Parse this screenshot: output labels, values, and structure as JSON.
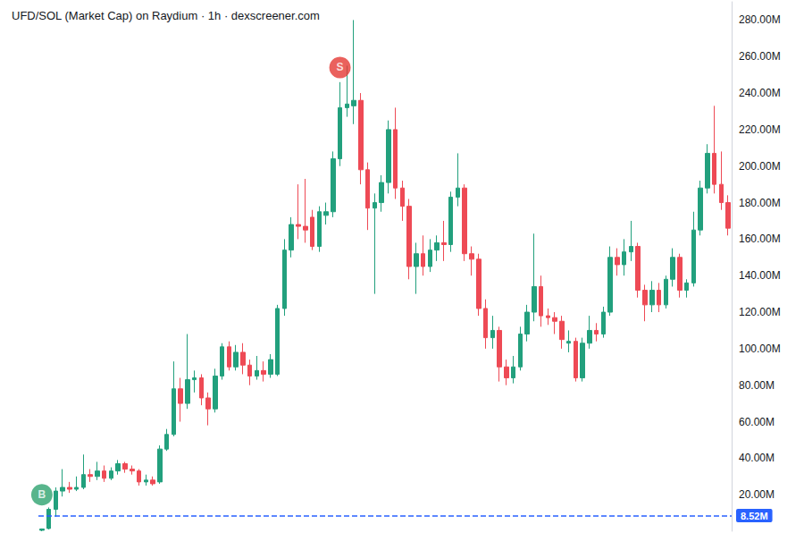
{
  "chart_data": {
    "type": "candlestick",
    "title": "UFD/SOL (Market Cap) on Raydium · 1h · dexscreener.com",
    "categories": [
      null,
      null,
      null,
      null,
      null,
      null,
      null,
      null,
      null,
      null,
      null,
      null,
      null,
      null,
      null,
      null,
      null,
      null,
      null,
      null,
      null,
      null,
      null,
      null,
      null,
      null,
      null,
      null,
      null,
      null,
      null,
      null,
      null,
      null,
      null,
      null,
      null,
      null,
      null,
      null,
      null,
      null,
      null,
      null,
      null,
      null,
      null,
      null,
      null,
      null,
      null,
      null,
      null,
      null,
      null,
      null,
      null,
      null,
      null,
      null,
      null,
      null,
      null,
      null,
      null,
      null,
      null,
      null,
      null,
      null,
      null,
      null,
      null,
      null,
      null,
      null,
      null,
      null,
      null,
      null,
      null,
      null,
      null,
      null,
      null,
      null,
      null,
      null,
      null,
      null,
      null,
      null,
      null,
      null,
      null,
      null,
      null,
      null,
      null,
      null
    ],
    "series": [
      {
        "open": [
          0.5,
          1.5,
          12,
          22,
          24,
          23,
          24,
          31,
          30,
          33,
          29,
          33,
          37,
          34,
          33,
          27,
          28,
          27,
          45,
          53,
          78,
          70,
          83,
          84,
          73,
          67,
          85,
          101,
          90,
          98,
          91,
          85,
          88,
          86,
          86,
          122,
          154,
          168,
          167,
          172,
          156,
          173,
          175,
          204,
          232,
          233,
          236,
          198,
          177,
          180,
          191,
          220,
          188,
          178,
          145,
          152,
          145,
          154,
          158,
          157,
          183,
          188,
          152,
          149,
          122,
          106,
          110,
          90,
          84,
          90,
          108,
          120,
          134,
          118,
          117,
          115,
          103,
          104,
          84,
          103,
          110,
          108,
          120,
          150,
          146,
          153,
          156,
          132,
          124,
          132,
          124,
          138,
          150,
          132,
          136,
          165,
          188,
          207,
          190,
          180
        ],
        "close": [
          1.2,
          12,
          22,
          24,
          23,
          24,
          31,
          30,
          33,
          29,
          33,
          37,
          34,
          33,
          27,
          28,
          26,
          45,
          53,
          78,
          70,
          83,
          84,
          73,
          67,
          85,
          101,
          90,
          98,
          91,
          85,
          88,
          86,
          94,
          122,
          154,
          168,
          167,
          165,
          156,
          175,
          175,
          204,
          232,
          234,
          236,
          198,
          177,
          180,
          191,
          220,
          188,
          178,
          145,
          152,
          145,
          154,
          158,
          157,
          183,
          188,
          152,
          149,
          122,
          106,
          110,
          90,
          84,
          90,
          108,
          120,
          134,
          118,
          117,
          115,
          105,
          104,
          84,
          103,
          110,
          108,
          120,
          150,
          146,
          153,
          156,
          132,
          124,
          132,
          124,
          138,
          150,
          132,
          136,
          165,
          188,
          207,
          190,
          180,
          166
        ],
        "low": [
          0,
          1,
          8,
          19,
          21,
          22,
          23,
          27,
          28,
          27,
          28,
          31,
          32,
          31,
          25,
          25,
          25,
          26,
          44,
          52,
          60,
          67,
          76,
          69,
          58,
          65,
          83,
          88,
          88,
          86,
          80,
          83,
          82,
          84,
          85,
          118,
          150,
          160,
          158,
          154,
          153,
          168,
          172,
          200,
          227,
          223,
          190,
          165,
          130,
          175,
          185,
          182,
          170,
          138,
          130,
          140,
          142,
          148,
          148,
          153,
          178,
          148,
          140,
          118,
          100,
          100,
          82,
          80,
          81,
          88,
          104,
          115,
          112,
          113,
          108,
          100,
          98,
          82,
          82,
          100,
          104,
          106,
          118,
          140,
          140,
          148,
          128,
          115,
          120,
          120,
          122,
          134,
          128,
          128,
          134,
          162,
          185,
          185,
          176,
          162
        ],
        "high": [
          1.5,
          13,
          24,
          34,
          27,
          30,
          42,
          34,
          38,
          36,
          35,
          39,
          38,
          36,
          34,
          31,
          30,
          47,
          56,
          93,
          84,
          108,
          88,
          86,
          76,
          89,
          103,
          104,
          102,
          103,
          94,
          96,
          93,
          97,
          124,
          160,
          172,
          190,
          193,
          176,
          178,
          180,
          208,
          246,
          255,
          280,
          240,
          202,
          185,
          195,
          225,
          232,
          192,
          182,
          158,
          162,
          160,
          162,
          170,
          186,
          207,
          190,
          156,
          152,
          127,
          118,
          112,
          94,
          96,
          112,
          124,
          163,
          140,
          122,
          120,
          118,
          110,
          106,
          106,
          118,
          114,
          123,
          156,
          155,
          160,
          170,
          158,
          135,
          137,
          136,
          140,
          155,
          152,
          138,
          175,
          192,
          212,
          233,
          208,
          184
        ]
      }
    ],
    "annotations": [
      {
        "text": "B",
        "x": 0,
        "y": 20,
        "color": "#2ea36f"
      },
      {
        "text": "S",
        "x": 43,
        "y": 254,
        "color": "#e53935"
      }
    ],
    "reference_line": {
      "value": 8.52,
      "label": "8.52M",
      "color": "#2962ff"
    },
    "ylim": [
      0,
      290
    ],
    "yticks": [
      {
        "value": 20,
        "label": "20.00M"
      },
      {
        "value": 40,
        "label": "40.00M"
      },
      {
        "value": 60,
        "label": "60.00M"
      },
      {
        "value": 80,
        "label": "80.00M"
      },
      {
        "value": 100,
        "label": "100.00M"
      },
      {
        "value": 120,
        "label": "120.00M"
      },
      {
        "value": 140,
        "label": "140.00M"
      },
      {
        "value": 160,
        "label": "160.00M"
      },
      {
        "value": 180,
        "label": "180.00M"
      },
      {
        "value": 200,
        "label": "200.00M"
      },
      {
        "value": 220,
        "label": "220.00M"
      },
      {
        "value": 240,
        "label": "240.00M"
      },
      {
        "value": 260,
        "label": "260.00M"
      },
      {
        "value": 280,
        "label": "280.00M"
      }
    ],
    "grid": false,
    "tick_labels": "y"
  }
}
